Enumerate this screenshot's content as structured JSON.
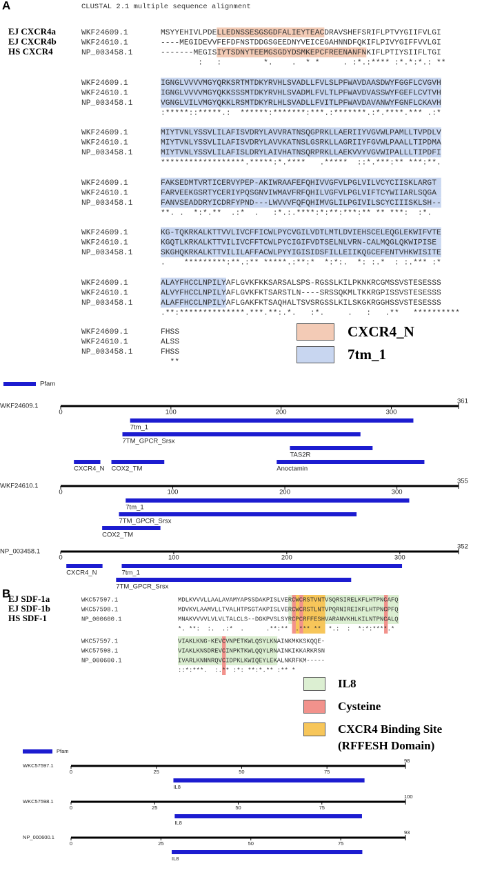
{
  "panel_a": {
    "label": "A",
    "header": "CLUSTAL 2.1 multiple sequence alignment",
    "species": [
      "EJ CXCR4a",
      "EJ CXCR4b",
      "HS CXCR4"
    ],
    "alignment": [
      {
        "rows": [
          {
            "id": "WKF24609.1",
            "seq": "MSYYEHIVLPDELLEDNSSESGSGDFALIEYTEACDRAVSHEFSRIFLPTVYGIIFVLGI"
          },
          {
            "id": "WKF24610.1",
            "seq": "----MEGIDEVVFEFDFNSTDDGSGEEDNYVEICEGAHNNDFQKIFLPIVYGIFFVVLGI"
          },
          {
            "id": "NP_003458.1",
            "seq": "-------MEGISIYTSDNYTEEMGSGDYDSMKEPCFREENANFNKIFLPTIYSIIFLTGI"
          }
        ],
        "consensus": "        :   :         *.    .  * *     . :*.:**** :*.*:*.: **"
      },
      {
        "rows": [
          {
            "id": "WKF24609.1",
            "seq": "IGNGLVVVVMGYQRKSRTMTDKYRVHLSVADLLFVLSLPFWAVDAASDWYFGGFLCVGVH"
          },
          {
            "id": "WKF24610.1",
            "seq": "IGNGLVVVVMGYQKKSSSMTDKYRVHLSVADMLFVLTLPFWAVDVASSWYFGEFLCVTVH"
          },
          {
            "id": "NP_003458.1",
            "seq": "VGNGLVILVMGYQKKLRSMTDKYRLHLSVADLLFVITLPFWAVDAVANWYFGNFLCKAVH"
          }
        ],
        "consensus": ":*****::*****.:  ******:*******:***.:*******.:*.****.*** .:*"
      },
      {
        "rows": [
          {
            "id": "WKF24609.1",
            "seq": "MIYTVNLYSSVLILAFISVDRYLAVVRATNSQGPRKLLAERIIYVGVWLPAMLLTVPDLV"
          },
          {
            "id": "WKF24610.1",
            "seq": "MIYTVNLYSSVLILAFISVDRYLAVVKATNSLGSRKLLAGRIIYFGVWLPAALLTIPDMA"
          },
          {
            "id": "NP_003458.1",
            "seq": "MIYTVNLYSSVLILAFISLDRYLAIVHATNSQRPRKLLAEKVVYVGVWIPALLLTIPDFI"
          }
        ],
        "consensus": "******************.*****:*.****   .*****  ::*.***:** ***:**. "
      },
      {
        "rows": [
          {
            "id": "WKF24609.1",
            "seq": "FAKSEDMTVRTICERVYPEP-AKIWRAAFEFQHIVVGFVLPGLVILVCYCIISKLARGT"
          },
          {
            "id": "WKF24610.1",
            "seq": "FARVEEKGSRTYCERIYPQSGNVIWMAVFRFQHILVGFVLPGLVIFTCYWIIARLSQGA"
          },
          {
            "id": "NP_003458.1",
            "seq": "FANVSEADDRYICDRFYPND---LWVVVFQFQHIMVGLILPGIVILSCYCIIISKLSH--"
          }
        ],
        "consensus": "**. .  *:*.**  .:*  .   :*.:.****:*:**:***:** ** ***:  :*.  "
      },
      {
        "rows": [
          {
            "id": "WKF24609.1",
            "seq": "KG-TQKRKALKTTVVLIVCFFICWLPYCVGILVDTLMTLDVIEHSCELEQGLEKWIFVTE"
          },
          {
            "id": "WKF24610.1",
            "seq": "KGQTLKRKALKTTVILIVCFFTCWLPYCIGIFVDTSELNLVRN-CALMQGLQKWIPISE"
          },
          {
            "id": "NP_003458.1",
            "seq": "SKGHQKRKALKTTVILILAFFACWLPYYIGISIDSFILLEIIKQGCEFENTVHKWISITE"
          }
        ],
        "consensus": ".    *********:**.:** *****.:**:*  *:*:.  *: :.*  : :.*** :* "
      },
      {
        "rows": [
          {
            "id": "WKF24609.1",
            "seq": "ALAYFHCCLNPILYAFLGVKFKKSARSALSPS-RGSSLKILPKNKRCGMSSVSTESESSS"
          },
          {
            "id": "WKF24610.1",
            "seq": "ALVYFHCCLNPILYAFLGVKFKTSARSTLN----SRSSQKMLTKKRGPISSVSTESESSS"
          },
          {
            "id": "NP_003458.1",
            "seq": "ALAFFHCCLNPILYAFLGAKFKTSAQHALTSVSRGSSLKILSKGKRGGHSSVSTESESSS"
          }
        ],
        "consensus": ".**:**************.***.**:.*.   :*.     .   :   .**   **********"
      },
      {
        "rows": [
          {
            "id": "WKF24609.1",
            "seq": "FHSS"
          },
          {
            "id": "WKF24610.1",
            "seq": "ALSS"
          },
          {
            "id": "NP_003458.1",
            "seq": "FHSS"
          }
        ],
        "consensus": "  **"
      }
    ],
    "legend": [
      {
        "label": "CXCR4_N",
        "color": "#f3cbb6"
      },
      {
        "label": "7tm_1",
        "color": "#c8d6f0"
      }
    ]
  },
  "panel_a_pfam": {
    "legend": "Pfam",
    "color": "#1c1cd0",
    "tracks": [
      {
        "id": "WKF24609.1",
        "length": 361,
        "ticks": [
          0,
          100,
          200,
          300
        ],
        "domains": [
          {
            "name": "7tm_1",
            "start": 63,
            "end": 320
          },
          {
            "name": "7TM_GPCR_Srsx",
            "start": 56,
            "end": 272
          },
          {
            "name": "TAS2R",
            "start": 208,
            "end": 283
          },
          {
            "name": "CXCR4_N",
            "start": 12,
            "end": 36
          },
          {
            "name": "COX2_TM",
            "start": 46,
            "end": 94
          },
          {
            "name": "Anoctamin",
            "start": 196,
            "end": 330
          }
        ]
      },
      {
        "id": "WKF24610.1",
        "length": 355,
        "ticks": [
          0,
          100,
          200,
          300
        ],
        "domains": [
          {
            "name": "7tm_1",
            "start": 58,
            "end": 311
          },
          {
            "name": "7TM_GPCR_Srsx",
            "start": 52,
            "end": 264
          },
          {
            "name": "COX2_TM",
            "start": 37,
            "end": 89
          }
        ]
      },
      {
        "id": "NP_003458.1",
        "length": 352,
        "ticks": [
          0,
          100,
          200,
          300
        ],
        "domains": [
          {
            "name": "CXCR4_N",
            "start": 5,
            "end": 37
          },
          {
            "name": "7tm_1",
            "start": 54,
            "end": 302
          },
          {
            "name": "7TM_GPCR_Srsx",
            "start": 49,
            "end": 257
          }
        ]
      }
    ]
  },
  "panel_b": {
    "label": "B",
    "species": [
      "EJ SDF-1a",
      "EJ SDF-1b",
      "HS SDF-1"
    ],
    "alignment": [
      {
        "rows": [
          {
            "id": "WKC57597.1",
            "seq": "MDLKVVVLLAALAVAMYAPSSDAKPISLVERCWCRSTVNTVSQRSIRELKFLHTPNCAFQ"
          },
          {
            "id": "WKC57598.1",
            "seq": "MDVKVLAAMVLLTVALHTPSGTAKPISLVERCWCRSTLNTVPQRNIREIKFLHTPNCPFQ"
          },
          {
            "id": "NP_000600.1",
            "seq": "MNAKVVVVLVLVLTALCLS--DGKPVSLSYRCPCRFFESHVARANVKHLKILNTPNCALQ"
          }
        ],
        "consensus": "*. **:  :.  .:*  .      .**:**  .*** **  *.:  :  *:*:****.* "
      },
      {
        "rows": [
          {
            "id": "WKC57597.1",
            "seq": "VIAKLKNG-KEVCVNPETKWLQSYLKNAINKMKKSKQQE-"
          },
          {
            "id": "WKC57598.1",
            "seq": "VIAKLKNSDREVCINPKTKWLQQYLRNAINKIKKARKRSN"
          },
          {
            "id": "NP_000600.1",
            "seq": "IVARLKNNNRQVCIDPKLKWIQEYLEKALNKRFKM-----"
          }
        ],
        "consensus": "::*:***.  :.** :*: **:*.** :** *      "
      }
    ],
    "legend": [
      {
        "label": "IL8",
        "color": "#dcefd2"
      },
      {
        "label": "Cysteine",
        "color": "#f2928c"
      },
      {
        "label": "CXCR4 Binding Site (RFFESH Domain)",
        "color": "#f7c65a"
      }
    ]
  },
  "panel_b_pfam": {
    "legend": "Pfam",
    "color": "#1c1cd0",
    "tracks": [
      {
        "id": "WKC57597.1",
        "length": 98,
        "ticks": [
          0,
          25,
          50,
          75
        ],
        "domains": [
          {
            "name": "IL8",
            "start": 30,
            "end": 86
          }
        ]
      },
      {
        "id": "WKC57598.1",
        "length": 100,
        "ticks": [
          0,
          25,
          50,
          75
        ],
        "domains": [
          {
            "name": "IL8",
            "start": 31,
            "end": 87
          }
        ]
      },
      {
        "id": "NP_000600.1",
        "length": 93,
        "ticks": [
          0,
          25,
          50,
          75
        ],
        "domains": [
          {
            "name": "IL8",
            "start": 28,
            "end": 81
          }
        ]
      }
    ]
  }
}
